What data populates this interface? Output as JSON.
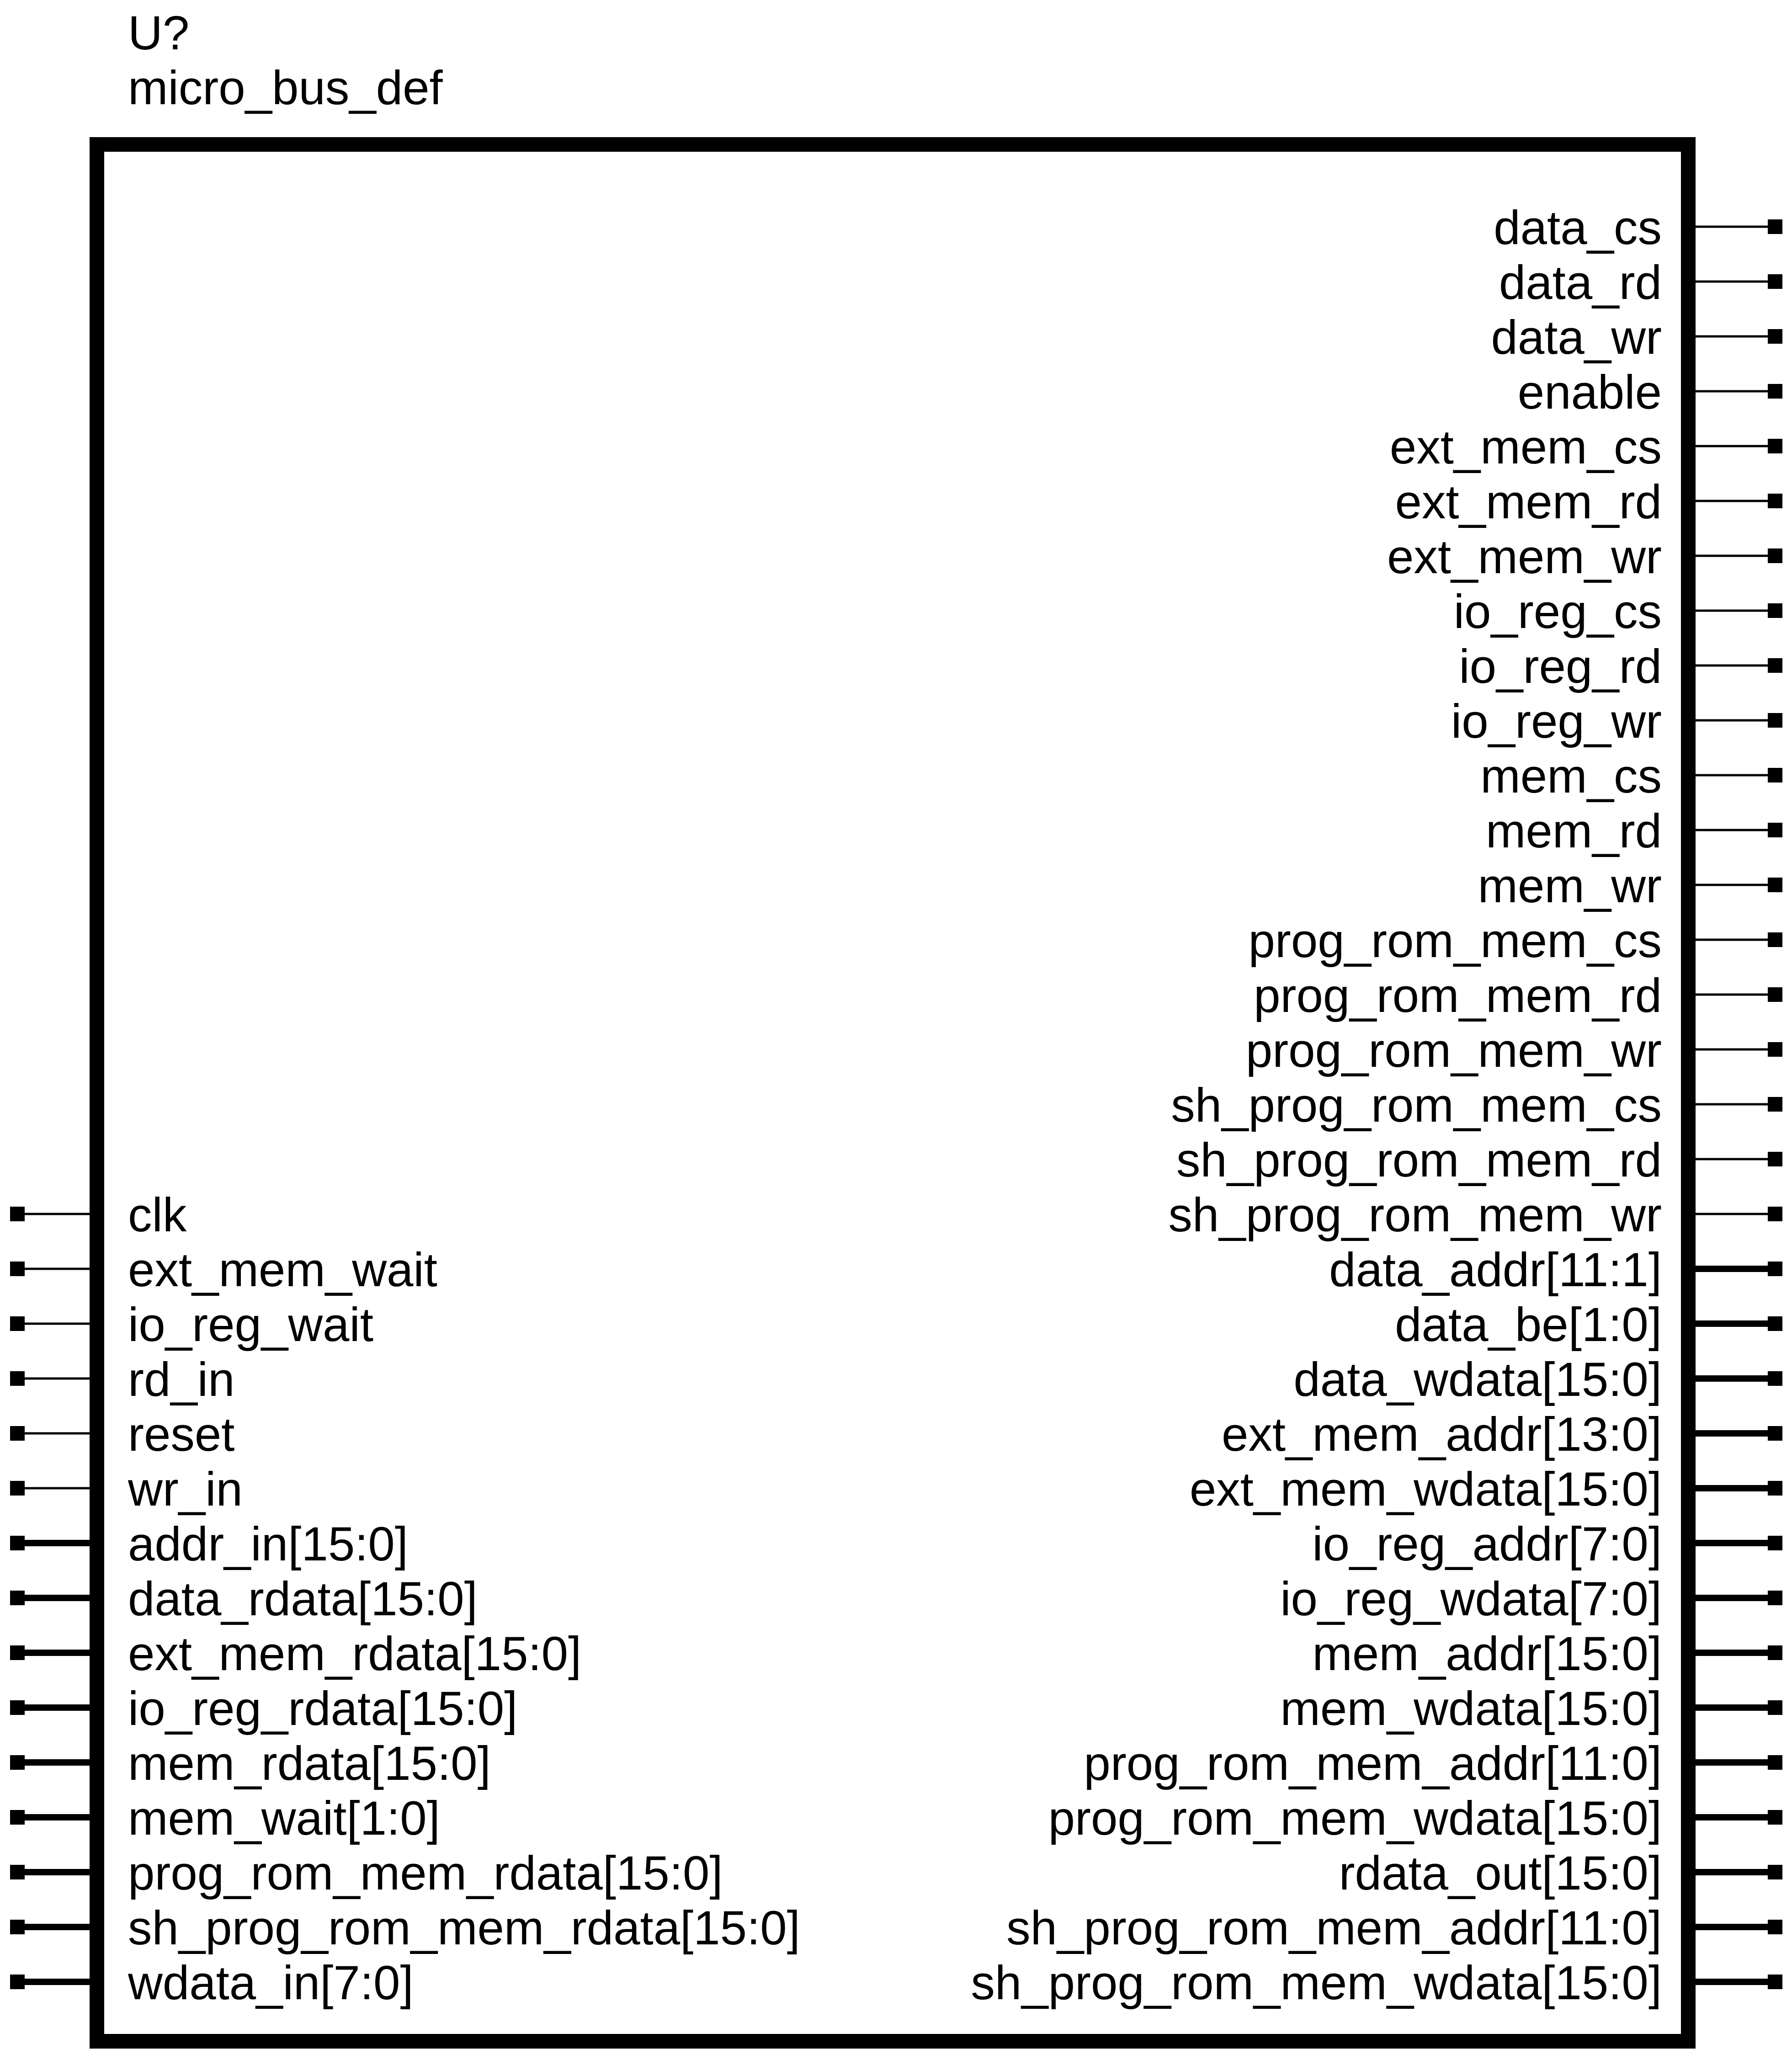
{
  "component": {
    "reference": "U?",
    "name": "micro_bus_def"
  },
  "colors": {
    "stroke": "#000000",
    "background": "#ffffff"
  },
  "inputs": {
    "single": [
      "clk",
      "ext_mem_wait",
      "io_reg_wait",
      "rd_in",
      "reset",
      "wr_in"
    ],
    "bus": [
      "addr_in[15:0]",
      "data_rdata[15:0]",
      "ext_mem_rdata[15:0]",
      "io_reg_rdata[15:0]",
      "mem_rdata[15:0]",
      "mem_wait[1:0]",
      "prog_rom_mem_rdata[15:0]",
      "sh_prog_rom_mem_rdata[15:0]",
      "wdata_in[7:0]"
    ]
  },
  "outputs": {
    "single": [
      "data_cs",
      "data_rd",
      "data_wr",
      "enable",
      "ext_mem_cs",
      "ext_mem_rd",
      "ext_mem_wr",
      "io_reg_cs",
      "io_reg_rd",
      "io_reg_wr",
      "mem_cs",
      "mem_rd",
      "mem_wr",
      "prog_rom_mem_cs",
      "prog_rom_mem_rd",
      "prog_rom_mem_wr",
      "sh_prog_rom_mem_cs",
      "sh_prog_rom_mem_rd",
      "sh_prog_rom_mem_wr"
    ],
    "bus": [
      "data_addr[11:1]",
      "data_be[1:0]",
      "data_wdata[15:0]",
      "ext_mem_addr[13:0]",
      "ext_mem_wdata[15:0]",
      "io_reg_addr[7:0]",
      "io_reg_wdata[7:0]",
      "mem_addr[15:0]",
      "mem_wdata[15:0]",
      "prog_rom_mem_addr[11:0]",
      "prog_rom_mem_wdata[15:0]",
      "rdata_out[15:0]",
      "sh_prog_rom_mem_addr[11:0]",
      "sh_prog_rom_mem_wdata[15:0]"
    ]
  }
}
